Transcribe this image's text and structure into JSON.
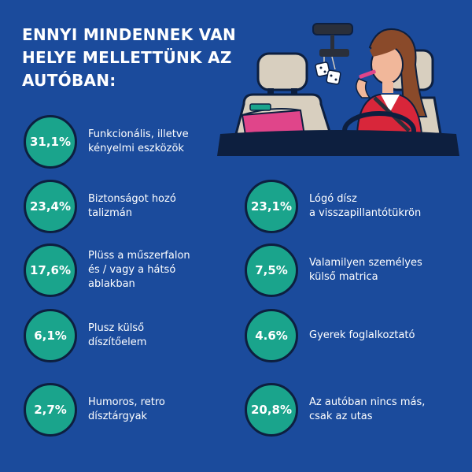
{
  "title_lines": [
    "ENNYI MINDENNEK VAN",
    "HELYE MELLETTÜNK AZ",
    "AUTÓBAN:"
  ],
  "items": [
    {
      "value": "31,1%",
      "label": [
        "Funkcionális, illetve",
        "kényelmi eszközök"
      ]
    },
    {
      "value": "23,4%",
      "label": [
        "Biztonságot hozó",
        "talizmán"
      ]
    },
    {
      "value": "23,1%",
      "label": [
        "Lógó dísz",
        "a visszapillantótükrön"
      ]
    },
    {
      "value": "17,6%",
      "label": [
        "Plüss a műszerfalon",
        "és / vagy a hátsó",
        "ablakban"
      ]
    },
    {
      "value": "7,5%",
      "label": [
        "Valamilyen személyes",
        "külső matrica"
      ]
    },
    {
      "value": "6,1%",
      "label": [
        "Plusz külső",
        "díszítőelem"
      ]
    },
    {
      "value": "4.6%",
      "label": [
        "Gyerek foglalkoztató"
      ]
    },
    {
      "value": "2,7%",
      "label": [
        "Humoros, retro",
        "dísztárgyak"
      ]
    },
    {
      "value": "20,8%",
      "label": [
        "Az autóban nincs más,",
        "csak az utas"
      ]
    }
  ],
  "colors": {
    "background": "#1b4b9c",
    "circle": "#1aa48c",
    "circle_border": "#0d1f3f"
  },
  "illustration": "woman-driving-car-with-hanging-dice-and-pink-bag"
}
